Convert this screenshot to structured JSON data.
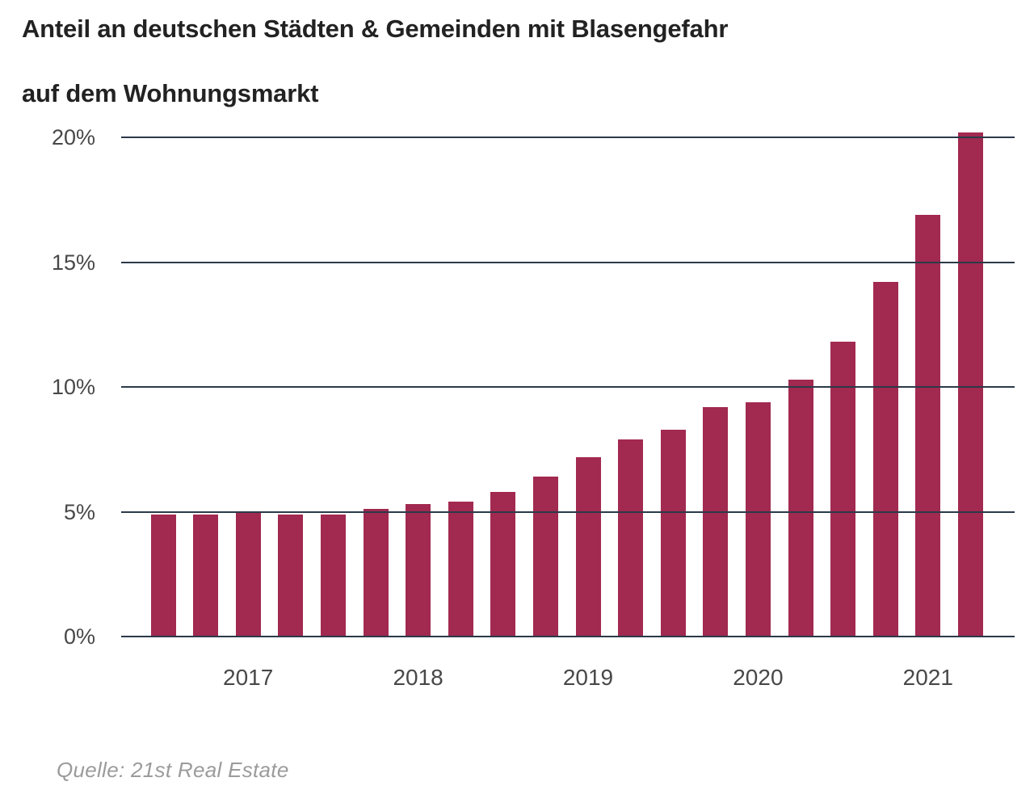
{
  "title": {
    "line1": "Anteil an deutschen Städten & Gemeinden mit Blasengefahr",
    "line2": "auf dem Wohnungsmarkt"
  },
  "source_note": "Quelle: 21st Real Estate",
  "colors": {
    "bar": "#a22950",
    "gridline": "#2b3a4a",
    "title_text": "#222222",
    "axis_text": "#484848",
    "source_text": "#9b9b9b",
    "background": "#ffffff"
  },
  "chart_data": {
    "type": "bar",
    "title": "Anteil an deutschen Städten & Gemeinden mit Blasengefahr auf dem Wohnungsmarkt",
    "unit": "%",
    "x_period": "quarterly",
    "x": [
      "2016-Q3",
      "2016-Q4",
      "2017-Q1",
      "2017-Q2",
      "2017-Q3",
      "2017-Q4",
      "2018-Q1",
      "2018-Q2",
      "2018-Q3",
      "2018-Q4",
      "2019-Q1",
      "2019-Q2",
      "2019-Q3",
      "2019-Q4",
      "2020-Q1",
      "2020-Q2",
      "2020-Q3",
      "2020-Q4",
      "2021-Q1",
      "2021-Q2"
    ],
    "values": [
      4.9,
      4.9,
      5.0,
      4.9,
      4.9,
      5.1,
      5.3,
      5.4,
      5.8,
      6.4,
      7.2,
      7.9,
      8.3,
      9.2,
      9.4,
      10.3,
      11.8,
      14.2,
      16.9,
      20.2
    ],
    "x_tick_labels": [
      "2017",
      "2018",
      "2019",
      "2020",
      "2021"
    ],
    "x_tick_bar_indices": [
      2,
      6,
      10,
      14,
      18
    ],
    "y_ticks": [
      {
        "label": "0%",
        "value": 0
      },
      {
        "label": "5%",
        "value": 5
      },
      {
        "label": "10%",
        "value": 10
      },
      {
        "label": "15%",
        "value": 15
      },
      {
        "label": "20%",
        "value": 20
      }
    ],
    "ylim": [
      0,
      20.5
    ],
    "grid": "horizontal",
    "legend": "none"
  }
}
